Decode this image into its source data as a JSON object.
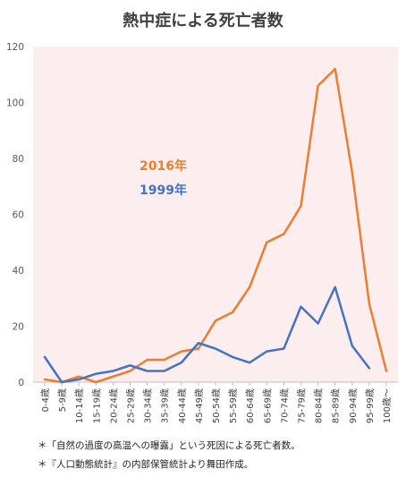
{
  "chart_data": {
    "type": "line",
    "title": "熱中症による死亡者数",
    "xlabel": "",
    "ylabel": "",
    "ylim": [
      0,
      120
    ],
    "yticks": [
      "0",
      "20",
      "40",
      "60",
      "80",
      "100",
      "120"
    ],
    "grid": false,
    "legend": "inline-labels",
    "plot_background": "#FCEEEE",
    "categories": [
      "0-4歳",
      "5-9歳",
      "10-14歳",
      "15-19歳",
      "20-24歳",
      "25-29歳",
      "30-34歳",
      "35-39歳",
      "40-44歳",
      "45-49歳",
      "50-54歳",
      "55-59歳",
      "60-64歳",
      "65-69歳",
      "70-74歳",
      "75-79歳",
      "80-84歳",
      "85-89歳",
      "90-94歳",
      "95-99歳",
      "100歳～"
    ],
    "series": [
      {
        "name": "2016年",
        "color": "#ED7D31",
        "values": [
          1,
          0,
          2,
          0,
          2,
          4,
          8,
          8,
          11,
          12,
          22,
          25,
          34,
          50,
          53,
          63,
          106,
          112,
          75,
          28,
          4
        ]
      },
      {
        "name": "1999年",
        "color": "#4472C4",
        "values": [
          9,
          0,
          1,
          3,
          4,
          6,
          4,
          4,
          7,
          14,
          12,
          9,
          7,
          11,
          12,
          27,
          21,
          34,
          13,
          5,
          null
        ]
      }
    ]
  },
  "notes": [
    "＊「自然の過度の高温への曝露」という死因による死亡者数。",
    "＊『人口動態統計』の内部保管統計より舞田作成。"
  ]
}
